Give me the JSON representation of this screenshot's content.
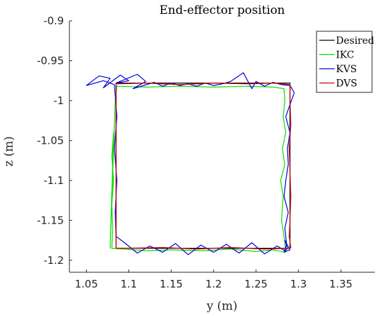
{
  "chart_data": {
    "type": "line",
    "title": "End-effector position",
    "xlabel": "y (m)",
    "ylabel": "z (m)",
    "xlim": [
      1.03,
      1.39
    ],
    "ylim": [
      -1.215,
      -0.9
    ],
    "xticks": [
      1.05,
      1.1,
      1.15,
      1.2,
      1.25,
      1.3,
      1.35
    ],
    "xtick_labels": [
      "1.05",
      "1.1",
      "1.15",
      "1.2",
      "1.25",
      "1.3",
      "1.35"
    ],
    "yticks": [
      -0.9,
      -0.95,
      -1.0,
      -1.05,
      -1.1,
      -1.15,
      -1.2
    ],
    "ytick_labels": [
      "-0.9",
      "-0.95",
      "-1",
      "-1.05",
      "-1.1",
      "-1.15",
      "-1.2"
    ],
    "grid": false,
    "legend_position": "top-right",
    "series": [
      {
        "name": "Desired",
        "color": "#000000",
        "x": [
          1.085,
          1.29,
          1.29,
          1.085,
          1.085
        ],
        "y": [
          -0.978,
          -0.978,
          -1.185,
          -1.185,
          -0.978
        ]
      },
      {
        "name": "IKC",
        "color": "#00e000",
        "x": [
          1.086,
          1.12,
          1.16,
          1.2,
          1.24,
          1.27,
          1.283,
          1.284,
          1.282,
          1.285,
          1.281,
          1.284,
          1.279,
          1.282,
          1.28,
          1.283,
          1.285,
          1.27,
          1.25,
          1.22,
          1.19,
          1.15,
          1.12,
          1.095,
          1.08,
          1.081,
          1.08,
          1.082,
          1.08,
          1.082,
          1.078,
          1.084,
          1.086
        ],
        "y": [
          -0.982,
          -0.983,
          -0.982,
          -0.983,
          -0.982,
          -0.983,
          -0.985,
          -1.0,
          -1.02,
          -1.04,
          -1.06,
          -1.08,
          -1.1,
          -1.12,
          -1.15,
          -1.17,
          -1.19,
          -1.187,
          -1.189,
          -1.186,
          -1.188,
          -1.187,
          -1.188,
          -1.186,
          -1.185,
          -1.16,
          -1.13,
          -1.1,
          -1.07,
          -1.04,
          -1.185,
          -1.0,
          -0.982
        ]
      },
      {
        "name": "KVS",
        "color": "#0000dd",
        "x": [
          1.083,
          1.07,
          1.05,
          1.065,
          1.078,
          1.07,
          1.09,
          1.1,
          1.085,
          1.11,
          1.12,
          1.105,
          1.13,
          1.14,
          1.15,
          1.16,
          1.17,
          1.18,
          1.19,
          1.2,
          1.21,
          1.22,
          1.235,
          1.245,
          1.25,
          1.26,
          1.27,
          1.28,
          1.29,
          1.295,
          1.29,
          1.285,
          1.29,
          1.287,
          1.288,
          1.285,
          1.283,
          1.288,
          1.284,
          1.286,
          1.283,
          1.287,
          1.284,
          1.29,
          1.285,
          1.275,
          1.26,
          1.245,
          1.23,
          1.215,
          1.2,
          1.185,
          1.17,
          1.155,
          1.14,
          1.125,
          1.11,
          1.095,
          1.085,
          1.084,
          1.086,
          1.083,
          1.086,
          1.083
        ],
        "y": [
          -0.98,
          -0.975,
          -0.981,
          -0.969,
          -0.972,
          -0.984,
          -0.968,
          -0.975,
          -0.978,
          -0.967,
          -0.976,
          -0.985,
          -0.977,
          -0.982,
          -0.978,
          -0.981,
          -0.979,
          -0.982,
          -0.978,
          -0.981,
          -0.979,
          -0.976,
          -0.965,
          -0.985,
          -0.976,
          -0.982,
          -0.977,
          -0.98,
          -0.981,
          -0.99,
          -1.005,
          -1.02,
          -1.04,
          -1.06,
          -1.08,
          -1.1,
          -1.12,
          -1.14,
          -1.16,
          -1.18,
          -1.19,
          -1.185,
          -1.175,
          -1.187,
          -1.189,
          -1.182,
          -1.192,
          -1.178,
          -1.191,
          -1.18,
          -1.19,
          -1.181,
          -1.193,
          -1.179,
          -1.19,
          -1.182,
          -1.191,
          -1.178,
          -1.17,
          -1.14,
          -1.1,
          -1.06,
          -1.02,
          -0.98
        ]
      },
      {
        "name": "DVS",
        "color": "#d00000",
        "x": [
          1.085,
          1.12,
          1.16,
          1.2,
          1.24,
          1.27,
          1.29,
          1.29,
          1.291,
          1.289,
          1.29,
          1.291,
          1.29,
          1.289,
          1.291,
          1.29,
          1.26,
          1.22,
          1.18,
          1.14,
          1.1,
          1.085,
          1.085,
          1.085
        ],
        "y": [
          -0.979,
          -0.978,
          -0.98,
          -0.978,
          -0.979,
          -0.978,
          -0.98,
          -1.0,
          -1.03,
          -1.06,
          -1.09,
          -1.12,
          -1.15,
          -1.17,
          -1.184,
          -1.185,
          -1.186,
          -1.184,
          -1.186,
          -1.184,
          -1.185,
          -1.185,
          -1.08,
          -0.979
        ]
      }
    ]
  }
}
